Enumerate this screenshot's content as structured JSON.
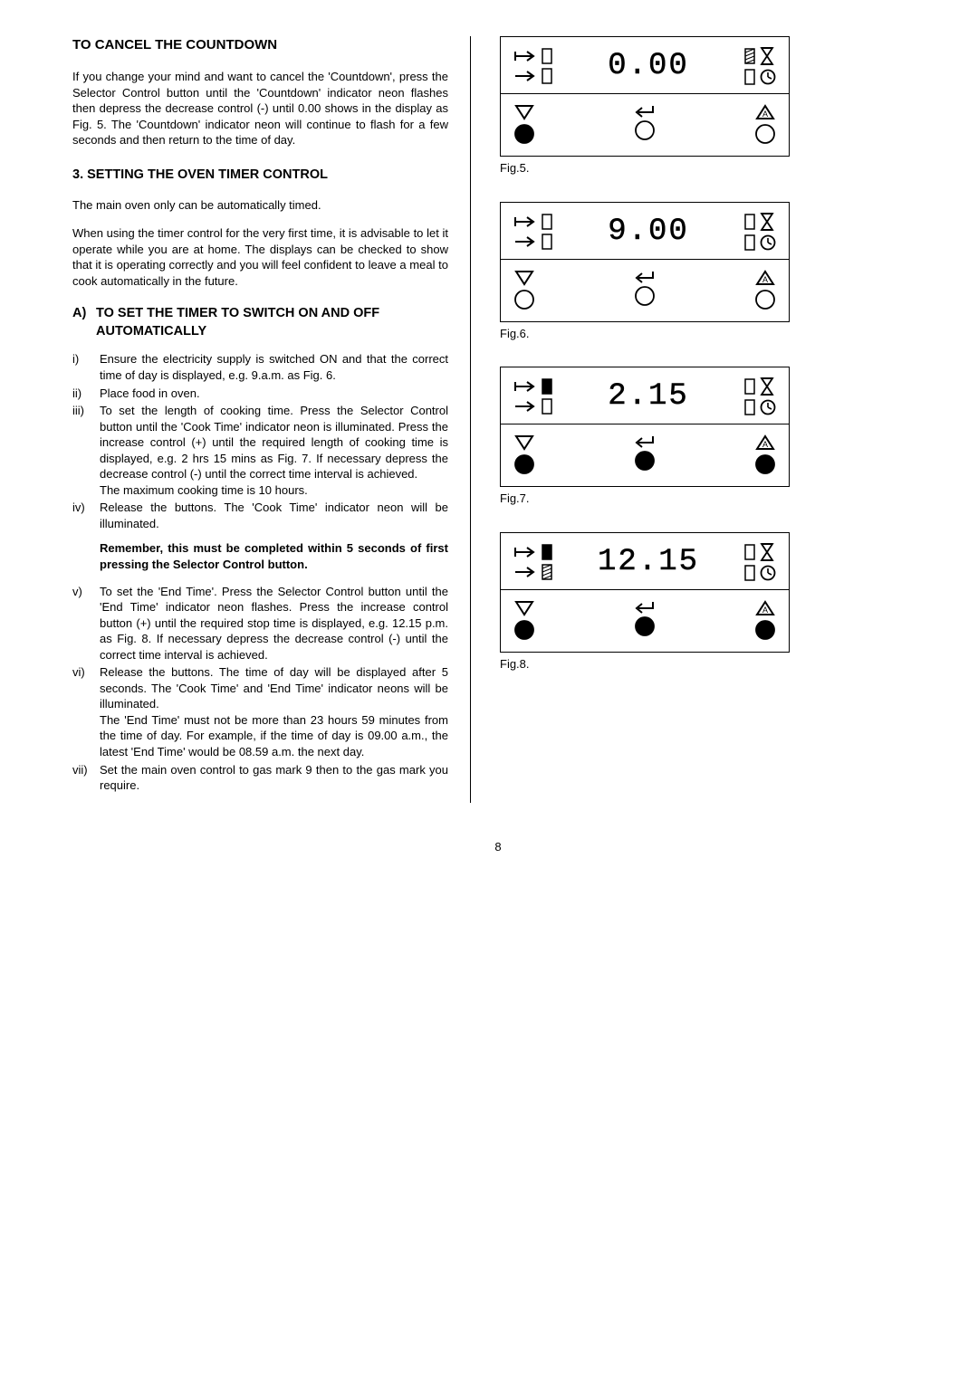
{
  "left": {
    "h1": "TO CANCEL THE COUNTDOWN",
    "p1": "If you change your mind and want to cancel the 'Countdown', press the Selector Control button until the 'Countdown' indicator neon flashes then depress the decrease control (-) until 0.00 shows in the display as Fig. 5. The 'Countdown' indicator neon will continue to flash for a few seconds and then return to the time of day.",
    "h2": "3. SETTING THE OVEN TIMER CONTROL",
    "p2": "The main oven only can be automatically timed.",
    "p3": "When using the timer control for the very first time, it is advisable to let it operate while you are at home. The displays can be checked to show that it is operating correctly and you will feel confident to leave a meal to cook automatically in the future.",
    "h3_lbl": "A)",
    "h3_txt": "TO SET THE TIMER TO SWITCH ON AND OFF AUTOMATICALLY",
    "steps_a": [
      {
        "m": "i)",
        "b": "Ensure the electricity supply is switched ON and that the correct time of day is displayed, e.g. 9.a.m. as Fig. 6."
      },
      {
        "m": "ii)",
        "b": "Place food in oven."
      },
      {
        "m": "iii)",
        "b": "To set the length of cooking time. Press the Selector Control button until the 'Cook Time' indicator neon is illuminated. Press the increase control (+) until the required length of cooking time is displayed, e.g. 2 hrs 15 mins as Fig. 7. If necessary depress the decrease control (-) until the correct time interval is achieved.\nThe maximum cooking time is 10 hours."
      },
      {
        "m": "iv)",
        "b": "Release the buttons. The 'Cook Time' indicator neon will be illuminated."
      }
    ],
    "remember": "Remember, this must be completed within 5 seconds of first pressing the Selector Control button.",
    "steps_b": [
      {
        "m": "v)",
        "b": "To set the 'End Time'. Press the Selector Control button until the 'End Time' indicator neon flashes. Press the increase  control button (+) until the required stop time is displayed, e.g. 12.15 p.m. as Fig. 8. If necessary depress the decrease control (-) until the correct time interval is achieved."
      },
      {
        "m": "vi)",
        "b": "Release the buttons. The time of day will be displayed after 5 seconds. The 'Cook Time' and 'End Time' indicator neons will be illuminated.\nThe 'End Time' must not be more than 23 hours 59 minutes from the time of day. For example, if the time of day is 09.00 a.m., the latest 'End Time' would be 08.59 a.m. the next day."
      },
      {
        "m": "vii)",
        "b": "Set the main oven control to gas mark 9 then to the gas mark you require."
      }
    ]
  },
  "figs": {
    "f5": {
      "display": "0.00",
      "label": "Fig.5.",
      "endFill": "dash",
      "startRight": false
    },
    "f6": {
      "display": "9.00",
      "label": "Fig.6.",
      "endFill": "none",
      "startRight": false
    },
    "f7": {
      "display": "2.15",
      "label": "Fig.7.",
      "endFill": "none",
      "startRight": true
    },
    "f8": {
      "display": "12.15",
      "label": "Fig.8.",
      "endFill": "none",
      "startRight": true
    }
  },
  "pageNum": "8"
}
